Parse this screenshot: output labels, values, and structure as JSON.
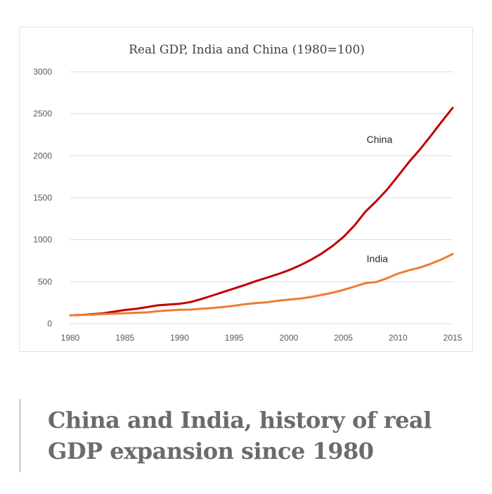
{
  "chart_data": {
    "type": "line",
    "title": "Real GDP, India and China (1980=100)",
    "xlabel": "",
    "ylabel": "",
    "x": [
      1980,
      1981,
      1982,
      1983,
      1984,
      1985,
      1986,
      1987,
      1988,
      1989,
      1990,
      1991,
      1992,
      1993,
      1994,
      1995,
      1996,
      1997,
      1998,
      1999,
      2000,
      2001,
      2002,
      2003,
      2004,
      2005,
      2006,
      2007,
      2008,
      2009,
      2010,
      2011,
      2012,
      2013,
      2014,
      2015
    ],
    "xticks": [
      1980,
      1985,
      1990,
      1995,
      2000,
      2005,
      2010,
      2015
    ],
    "yticks": [
      0,
      500,
      1000,
      1500,
      2000,
      2500,
      3000
    ],
    "ylim": [
      0,
      3000
    ],
    "xlim": [
      1980,
      2015
    ],
    "grid": "horizontal",
    "series": [
      {
        "name": "China",
        "color": "#c00000",
        "values": [
          100,
          105,
          113,
          124,
          143,
          163,
          177,
          197,
          219,
          228,
          237,
          257,
          294,
          335,
          378,
          420,
          462,
          508,
          548,
          590,
          637,
          693,
          758,
          835,
          925,
          1032,
          1167,
          1332,
          1458,
          1596,
          1760,
          1924,
          2074,
          2237,
          2407,
          2570
        ]
      },
      {
        "name": "India",
        "color": "#ed7d31",
        "values": [
          100,
          105,
          108,
          116,
          120,
          125,
          130,
          135,
          148,
          158,
          166,
          168,
          178,
          187,
          199,
          214,
          233,
          245,
          256,
          273,
          287,
          298,
          318,
          343,
          369,
          403,
          442,
          483,
          496,
          541,
          597,
          636,
          669,
          713,
          767,
          830
        ]
      }
    ],
    "annotations": [
      {
        "text": "China",
        "series": "China"
      },
      {
        "text": "India",
        "series": "India"
      }
    ]
  },
  "caption": "China and India, history of real GDP expansion since 1980"
}
